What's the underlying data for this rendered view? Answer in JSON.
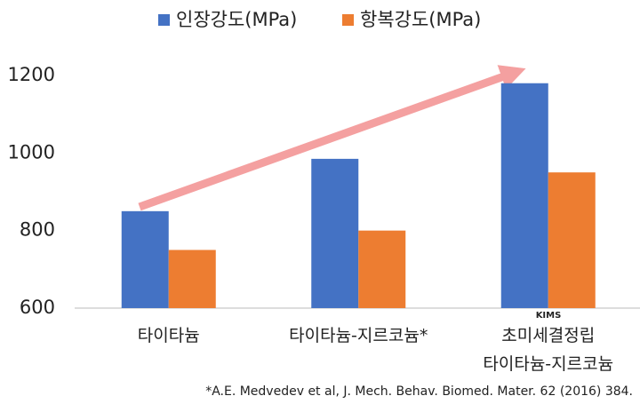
{
  "chart_data": {
    "type": "bar",
    "categories": [
      "타이타늄",
      "타이타늄-지르코늄*",
      "초미세결정립\n타이타늄-지르코늄"
    ],
    "series": [
      {
        "name": "인장강도(MPa)",
        "color": "#4472c4",
        "values": [
          850,
          985,
          1180
        ]
      },
      {
        "name": "항복강도(MPa)",
        "color": "#ed7d31",
        "values": [
          750,
          800,
          950
        ]
      }
    ],
    "ylim": [
      600,
      1200
    ],
    "yticks": [
      600,
      800,
      1000,
      1200
    ],
    "grid": false,
    "legend": "top",
    "logo_text": "KIMS",
    "footnote": "*A.E. Medvedev et al, J. Mech. Behav. Biomed. Mater. 62 (2016) 384."
  }
}
